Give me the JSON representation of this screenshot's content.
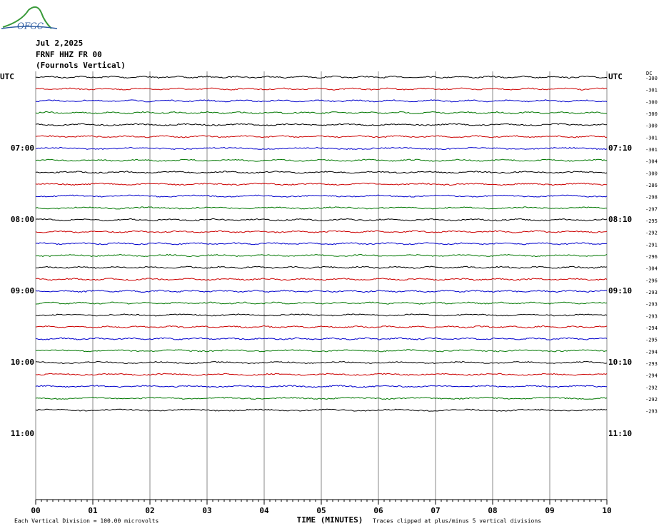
{
  "logo": "OFGC",
  "chart_data": {
    "type": "helicorder",
    "date": "Jul 2,2025",
    "station": "FRNF HHZ FR 00",
    "station_name": "(Fournols Vertical)",
    "left_labels": [
      "UTC",
      "07:00",
      "08:00",
      "09:00",
      "10:00",
      "11:00"
    ],
    "right_labels": [
      "UTC",
      "07:10",
      "08:10",
      "09:10",
      "10:10",
      "11:10"
    ],
    "dc_title": "DC",
    "dc_values": [
      -300,
      -301,
      -300,
      -300,
      -300,
      -301,
      -301,
      -304,
      -300,
      -286,
      -298,
      -297,
      -295,
      -292,
      -291,
      -296,
      -304,
      -296,
      -293,
      -293,
      -293,
      -294,
      -295,
      -294,
      -293,
      -294,
      -292,
      -292,
      -293
    ],
    "colors": [
      "#000000",
      "#cc0000",
      "#0000cc",
      "#007700"
    ],
    "xlim": [
      0,
      10
    ],
    "xticks": [
      {
        "value": 0,
        "label": "00"
      },
      {
        "value": 1,
        "label": "01"
      },
      {
        "value": 2,
        "label": "02"
      },
      {
        "value": 3,
        "label": "03"
      },
      {
        "value": 4,
        "label": "04"
      },
      {
        "value": 5,
        "label": "05"
      },
      {
        "value": 6,
        "label": "06"
      },
      {
        "value": 7,
        "label": "07"
      },
      {
        "value": 8,
        "label": "08"
      },
      {
        "value": 9,
        "label": "09"
      },
      10
    ],
    "xlabel": "TIME (MINUTES)",
    "scale_note": "Each Vertical Division =  100.00 microvolts",
    "clip_note": "Traces clipped at plus/minus 5 vertical divisions",
    "grid": true
  }
}
